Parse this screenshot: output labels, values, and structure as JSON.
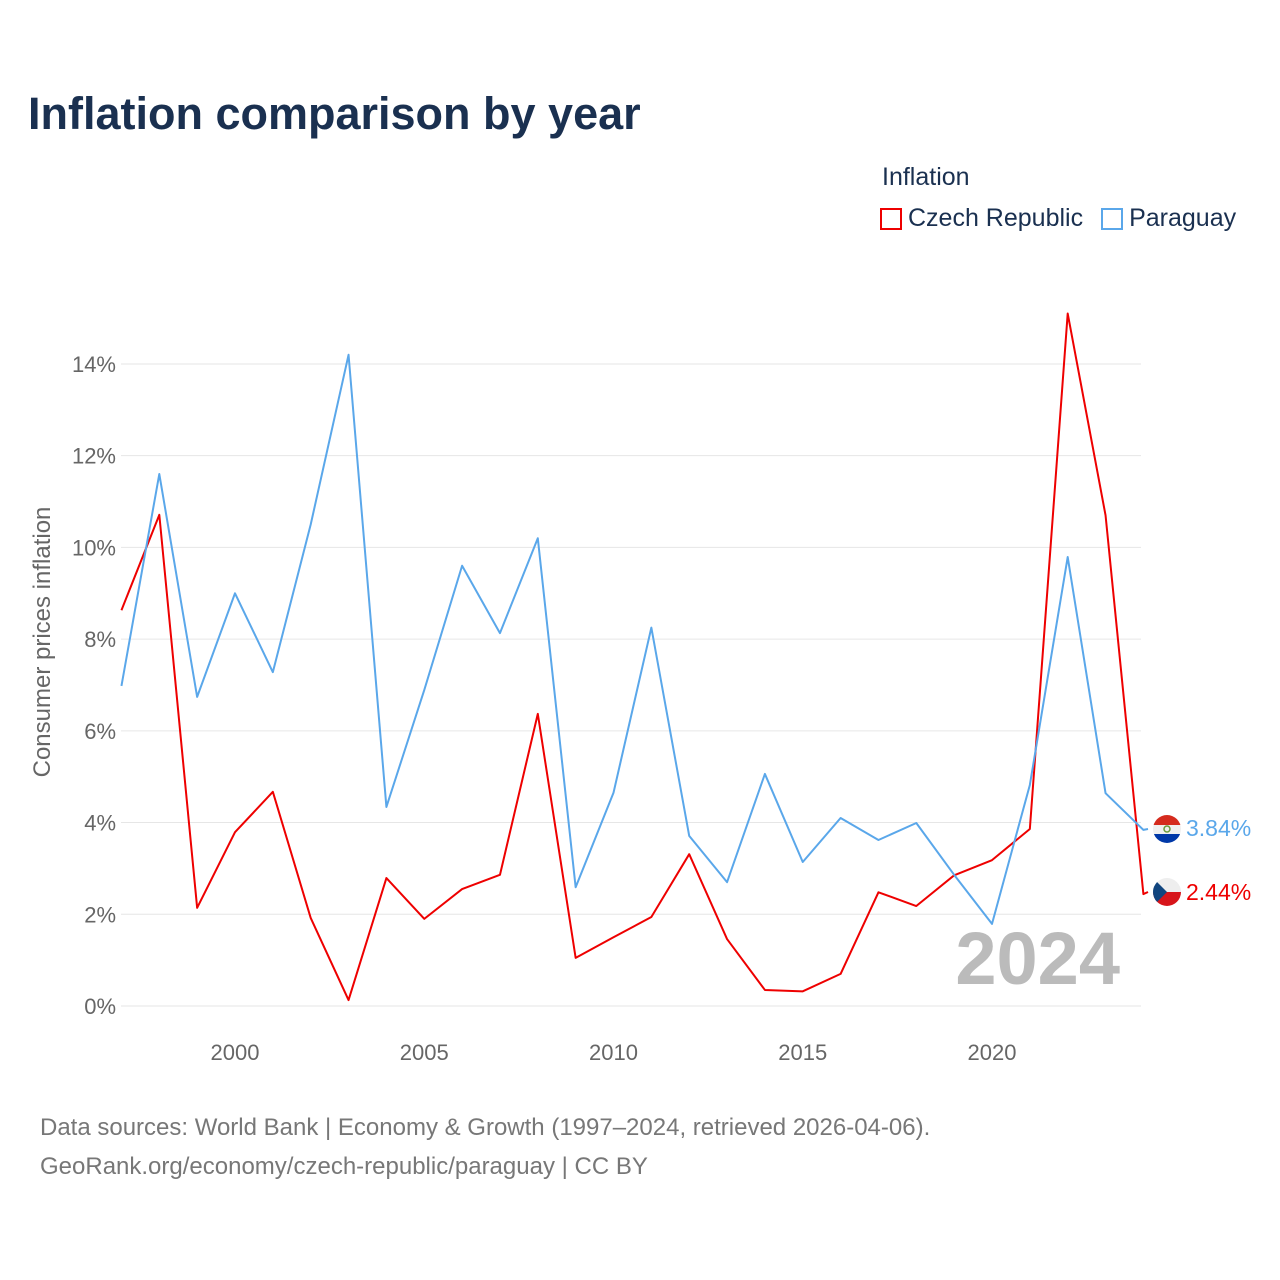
{
  "title": "Inflation comparison by year",
  "chart_data": {
    "type": "line",
    "title": "Inflation comparison by year",
    "legend_title": "Inflation",
    "legend_position": "top-right",
    "ylabel": "Consumer prices inflation",
    "xlabel": "",
    "ylim": [
      0,
      15.2
    ],
    "xlim": [
      1997,
      2024
    ],
    "y_ticks": [
      "0%",
      "2%",
      "4%",
      "6%",
      "8%",
      "10%",
      "12%",
      "14%"
    ],
    "y_tick_values": [
      0,
      2,
      4,
      6,
      8,
      10,
      12,
      14
    ],
    "x_ticks": [
      "2000",
      "2005",
      "2010",
      "2015",
      "2020"
    ],
    "x_tick_values": [
      2000,
      2005,
      2010,
      2015,
      2020
    ],
    "grid": true,
    "year_annotation": "2024",
    "x": [
      1997,
      1998,
      1999,
      2000,
      2001,
      2002,
      2003,
      2004,
      2005,
      2006,
      2007,
      2008,
      2009,
      2010,
      2011,
      2012,
      2013,
      2014,
      2015,
      2016,
      2017,
      2018,
      2019,
      2020,
      2021,
      2022,
      2023,
      2024
    ],
    "series": [
      {
        "name": "Czech Republic",
        "color": "#ee0000",
        "end_label": "2.44%",
        "values": [
          8.63,
          10.71,
          2.14,
          3.79,
          4.67,
          1.92,
          0.13,
          2.79,
          1.9,
          2.55,
          2.86,
          6.37,
          1.05,
          1.5,
          1.94,
          3.31,
          1.46,
          0.35,
          0.32,
          0.7,
          2.48,
          2.18,
          2.85,
          3.18,
          3.86,
          15.1,
          10.7,
          2.44
        ]
      },
      {
        "name": "Paraguay",
        "color": "#5aa7ea",
        "end_label": "3.84%",
        "values": [
          6.98,
          11.6,
          6.74,
          9.0,
          7.28,
          10.5,
          14.2,
          4.34,
          6.89,
          9.6,
          8.13,
          10.2,
          2.59,
          4.65,
          8.25,
          3.71,
          2.7,
          5.06,
          3.14,
          4.1,
          3.62,
          3.99,
          2.86,
          1.79,
          4.82,
          9.79,
          4.64,
          3.84
        ]
      }
    ]
  },
  "source_line1": "Data sources: World Bank | Economy & Growth (1997–2024, retrieved 2026-04-06).",
  "source_line2": "GeoRank.org/economy/czech-republic/paraguay | CC BY"
}
